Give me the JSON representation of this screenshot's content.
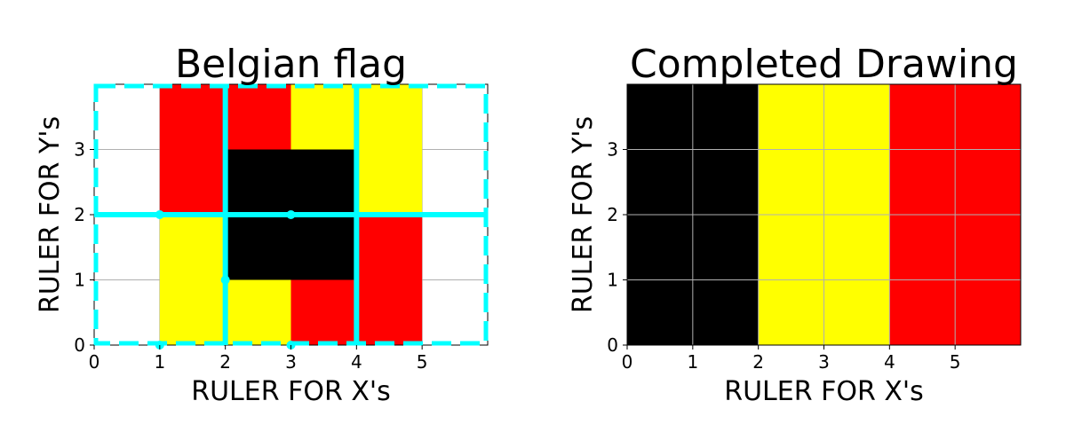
{
  "chart_data": [
    {
      "type": "heatmap",
      "title": "Belgian flag",
      "xlabel": "RULER FOR X's",
      "ylabel": "RULER FOR Y's",
      "xlim": [
        0,
        6
      ],
      "ylim": [
        0,
        4
      ],
      "x_ticks": [
        "0",
        "1",
        "2",
        "3",
        "4",
        "5"
      ],
      "y_ticks": [
        "0",
        "1",
        "2",
        "3"
      ],
      "grid": true,
      "colors": {
        "black": "#000000",
        "yellow": "#ffff00",
        "red": "#ff0000",
        "guide": "#00ffff",
        "grid": "#b0b0b0"
      },
      "cells": [
        {
          "x": 1,
          "y": 3,
          "color": "red"
        },
        {
          "x": 1,
          "y": 2,
          "color": "red"
        },
        {
          "x": 2,
          "y": 3,
          "color": "red"
        },
        {
          "x": 3,
          "y": 3,
          "color": "yellow"
        },
        {
          "x": 4,
          "y": 3,
          "color": "yellow"
        },
        {
          "x": 4,
          "y": 2,
          "color": "yellow"
        },
        {
          "x": 2,
          "y": 2,
          "color": "black"
        },
        {
          "x": 3,
          "y": 2,
          "color": "black"
        },
        {
          "x": 2,
          "y": 1,
          "color": "black"
        },
        {
          "x": 3,
          "y": 1,
          "color": "black"
        },
        {
          "x": 1,
          "y": 1,
          "color": "yellow"
        },
        {
          "x": 1,
          "y": 0,
          "color": "yellow"
        },
        {
          "x": 2,
          "y": 0,
          "color": "yellow"
        },
        {
          "x": 4,
          "y": 1,
          "color": "red"
        },
        {
          "x": 3,
          "y": 0,
          "color": "red"
        },
        {
          "x": 4,
          "y": 0,
          "color": "red"
        }
      ],
      "guide_lines": [
        {
          "from": [
            0,
            2
          ],
          "to": [
            6,
            2
          ]
        },
        {
          "from": [
            2,
            0
          ],
          "to": [
            2,
            4
          ]
        },
        {
          "from": [
            4,
            0
          ],
          "to": [
            4,
            4
          ]
        }
      ],
      "guide_points": [
        [
          1,
          2
        ],
        [
          3,
          2
        ],
        [
          2,
          1
        ],
        [
          1,
          0
        ],
        [
          3,
          0
        ]
      ],
      "dashed_border": {
        "x0": 0,
        "y0": 0,
        "x1": 6,
        "y1": 4
      }
    },
    {
      "type": "heatmap",
      "title": "Completed Drawing",
      "xlabel": "RULER FOR X's",
      "ylabel": "RULER FOR Y's",
      "xlim": [
        0,
        6
      ],
      "ylim": [
        0,
        4
      ],
      "x_ticks": [
        "0",
        "1",
        "2",
        "3",
        "4",
        "5"
      ],
      "y_ticks": [
        "0",
        "1",
        "2",
        "3"
      ],
      "grid": true,
      "colors": {
        "black": "#000000",
        "yellow": "#ffff00",
        "red": "#ff0000",
        "grid": "#b0b0b0"
      },
      "bands": [
        {
          "x0": 0,
          "x1": 2,
          "color": "black"
        },
        {
          "x0": 2,
          "x1": 4,
          "color": "yellow"
        },
        {
          "x0": 4,
          "x1": 6,
          "color": "red"
        }
      ]
    }
  ]
}
